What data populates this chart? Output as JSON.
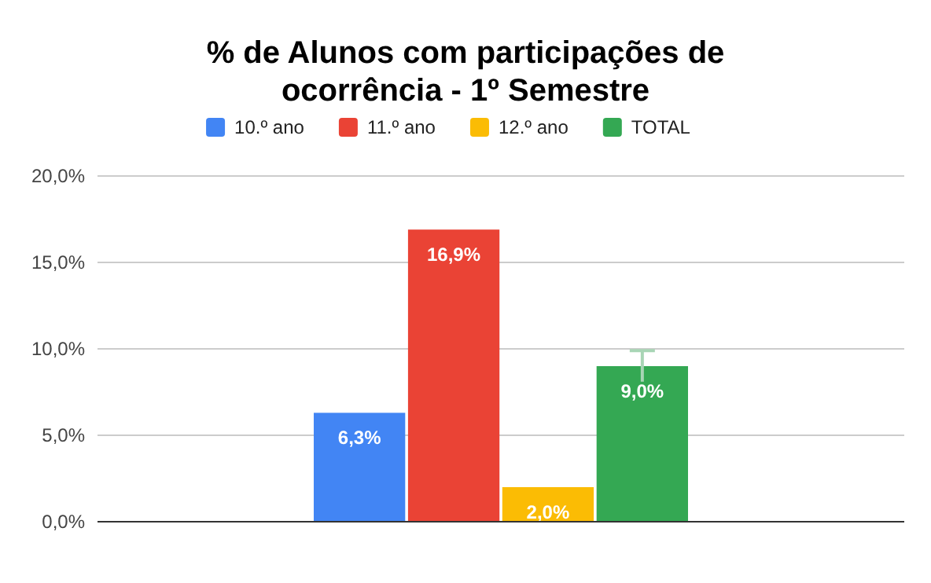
{
  "chart_data": {
    "type": "bar",
    "title": "% de Alunos com participações de ocorrência - 1º Semestre",
    "categories": [
      null
    ],
    "series": [
      {
        "name": "10.º ano",
        "color": "#4285f4",
        "values": [
          6.3
        ],
        "value_labels": [
          "6,3%"
        ]
      },
      {
        "name": "11.º ano",
        "color": "#ea4335",
        "values": [
          16.9
        ],
        "value_labels": [
          "16,9%"
        ]
      },
      {
        "name": "12.º ano",
        "color": "#fbbc04",
        "values": [
          2.0
        ],
        "value_labels": [
          "2,0%"
        ]
      },
      {
        "name": "TOTAL",
        "color": "#34a853",
        "values": [
          9.0
        ],
        "value_labels": [
          "9,0%"
        ],
        "errors": [
          0.9
        ]
      }
    ],
    "ylim": [
      0,
      20
    ],
    "yticks": [
      {
        "value": 0,
        "label": "0,0%"
      },
      {
        "value": 5,
        "label": "5,0%"
      },
      {
        "value": 10,
        "label": "10,0%"
      },
      {
        "value": 15,
        "label": "15,0%"
      },
      {
        "value": 20,
        "label": "20,0%"
      }
    ],
    "grid": "y",
    "legend": "top"
  }
}
